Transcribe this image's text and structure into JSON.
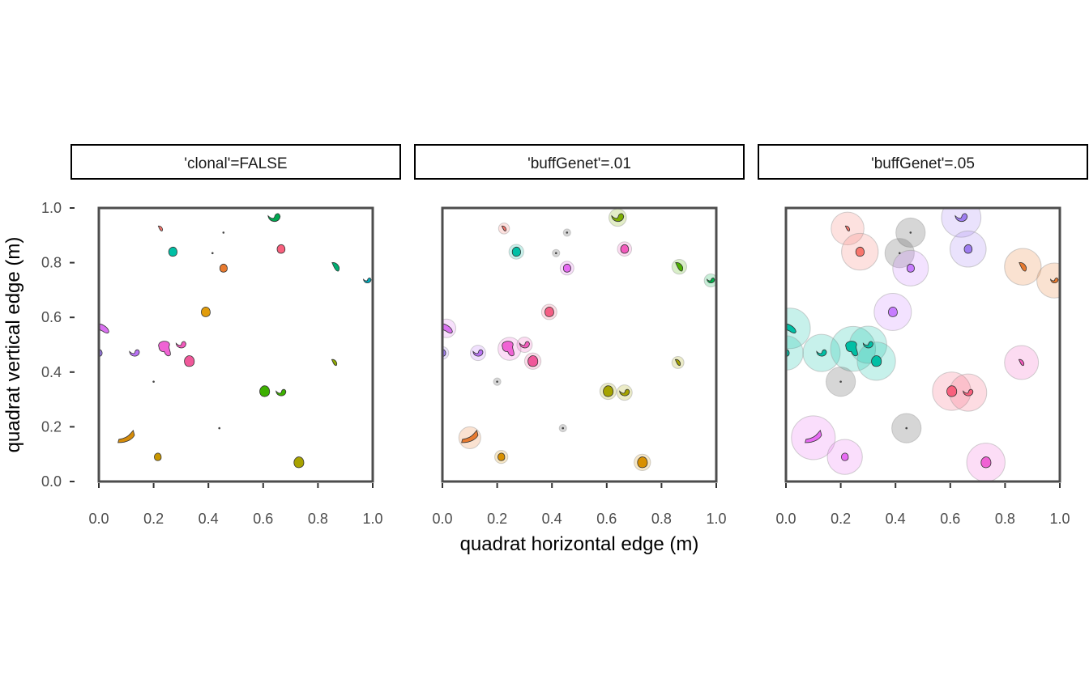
{
  "chart_data": {
    "type": "scatter",
    "description_of_marks": "polygons of plant basal cover drawn as colored blobs; genet buffers drawn as translucent halos",
    "xlabel": "quadrat horizontal edge (m)",
    "ylabel": "quadrat vertical edge (m)",
    "xlim": [
      0,
      1
    ],
    "ylim": [
      0,
      1
    ],
    "x_ticks": [
      "0.0",
      "0.2",
      "0.4",
      "0.6",
      "0.8",
      "1.0"
    ],
    "y_ticks": [
      "0.0",
      "0.2",
      "0.4",
      "0.6",
      "0.8",
      "1.0"
    ],
    "grid": false,
    "facets": [
      {
        "label": "'clonal'=FALSE",
        "buffer_m": 0
      },
      {
        "label": "'buffGenet'=.01",
        "buffer_m": 0.01
      },
      {
        "label": "'buffGenet'=.05",
        "buffer_m": 0.05
      }
    ],
    "plants": [
      {
        "x": 0.225,
        "y": 0.925,
        "r": 0.01,
        "shape": "leaf",
        "c1": "#F8766D",
        "c2": "#F8766D",
        "c3": "#F8766D"
      },
      {
        "x": 0.455,
        "y": 0.91,
        "r": 0.002,
        "shape": "dot",
        "c1": "#444444",
        "c2": "#444444",
        "c3": "#444444"
      },
      {
        "x": 0.64,
        "y": 0.965,
        "r": 0.022,
        "shape": "crescent",
        "c1": "#00A650",
        "c2": "#7CAE00",
        "c3": "#9E7DF0"
      },
      {
        "x": 0.27,
        "y": 0.84,
        "r": 0.017,
        "shape": "blob",
        "c1": "#00BFA5",
        "c2": "#00BFA5",
        "c3": "#F8766D"
      },
      {
        "x": 0.415,
        "y": 0.835,
        "r": 0.002,
        "shape": "dot",
        "c1": "#444444",
        "c2": "#444444",
        "c3": "#444444"
      },
      {
        "x": 0.665,
        "y": 0.85,
        "r": 0.016,
        "shape": "blob",
        "c1": "#F8607D",
        "c2": "#F35ABD",
        "c3": "#9E7DF0"
      },
      {
        "x": 0.455,
        "y": 0.78,
        "r": 0.015,
        "shape": "blob",
        "c1": "#E87A2F",
        "c2": "#E76BF3",
        "c3": "#C77CFF"
      },
      {
        "x": 0.865,
        "y": 0.785,
        "r": 0.017,
        "shape": "leaf",
        "c1": "#00AE72",
        "c2": "#4CB000",
        "c3": "#E87A2F"
      },
      {
        "x": 0.98,
        "y": 0.735,
        "r": 0.014,
        "shape": "crescent",
        "c1": "#00A9BA",
        "c2": "#00B14A",
        "c3": "#E87A2F"
      },
      {
        "x": 0.39,
        "y": 0.62,
        "r": 0.018,
        "shape": "blob",
        "c1": "#E19C0A",
        "c2": "#F45E84",
        "c3": "#C77CFF"
      },
      {
        "x": 0.015,
        "y": 0.56,
        "r": 0.024,
        "shape": "tear",
        "c1": "#D971F0",
        "c2": "#D971F0",
        "c3": "#00BFA5"
      },
      {
        "x": 0.0,
        "y": 0.47,
        "r": 0.013,
        "shape": "blob",
        "c1": "#9E7DF0",
        "c2": "#9E7DF0",
        "c3": "#00BFA5"
      },
      {
        "x": 0.13,
        "y": 0.47,
        "r": 0.018,
        "shape": "crescent",
        "c1": "#B973F5",
        "c2": "#B973F5",
        "c3": "#00BFA5"
      },
      {
        "x": 0.245,
        "y": 0.485,
        "r": 0.032,
        "shape": "hand",
        "c1": "#F063D4",
        "c2": "#F063D4",
        "c3": "#00BFA5"
      },
      {
        "x": 0.3,
        "y": 0.5,
        "r": 0.018,
        "shape": "crescent",
        "c1": "#F35ABD",
        "c2": "#F35ABD",
        "c3": "#00BFA5"
      },
      {
        "x": 0.33,
        "y": 0.44,
        "r": 0.02,
        "shape": "blob",
        "c1": "#F0589A",
        "c2": "#F0589A",
        "c3": "#00BFA5"
      },
      {
        "x": 0.2,
        "y": 0.365,
        "r": 0.002,
        "shape": "dot",
        "c1": "#444444",
        "c2": "#444444",
        "c3": "#444444"
      },
      {
        "x": 0.86,
        "y": 0.435,
        "r": 0.012,
        "shape": "leaf",
        "c1": "#8FAA00",
        "c2": "#A5A300",
        "c3": "#F35ABD"
      },
      {
        "x": 0.605,
        "y": 0.33,
        "r": 0.02,
        "shape": "blob",
        "c1": "#3DB000",
        "c2": "#A5A300",
        "c3": "#F8607D"
      },
      {
        "x": 0.665,
        "y": 0.325,
        "r": 0.018,
        "shape": "crescent",
        "c1": "#3DB000",
        "c2": "#A5A300",
        "c3": "#F8607D"
      },
      {
        "x": 0.44,
        "y": 0.195,
        "r": 0.002,
        "shape": "dot",
        "c1": "#444444",
        "c2": "#444444",
        "c3": "#444444"
      },
      {
        "x": 0.1,
        "y": 0.16,
        "r": 0.03,
        "shape": "long",
        "c1": "#D58C0A",
        "c2": "#E87A2F",
        "c3": "#E76BF3"
      },
      {
        "x": 0.215,
        "y": 0.09,
        "r": 0.014,
        "shape": "blob",
        "c1": "#C99700",
        "c2": "#D89000",
        "c3": "#E76BF3"
      },
      {
        "x": 0.73,
        "y": 0.07,
        "r": 0.02,
        "shape": "blob",
        "c1": "#A8A200",
        "c2": "#D89000",
        "c3": "#F063D4"
      }
    ]
  }
}
